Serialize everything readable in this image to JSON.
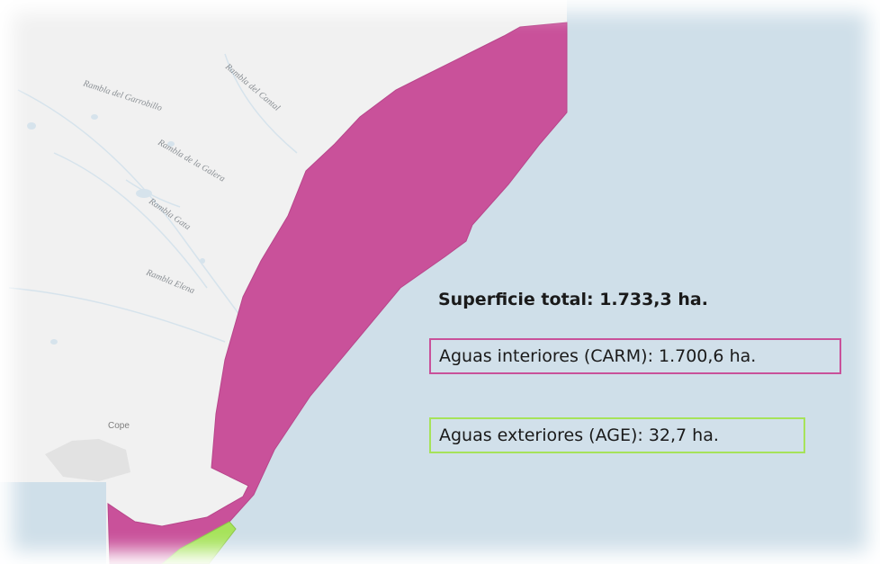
{
  "summary": {
    "total": "Superficie total: 1.733,3 ha.",
    "interior": "Aguas interiores (CARM): 1.700,6 ha.",
    "exterior": "Aguas exteriores (AGE): 32,7 ha."
  },
  "map_labels": [
    "Rambla del Garrobillo",
    "Rambla de la Galera",
    "Rambla Gata",
    "Rambla Elena",
    "Rambla del Cantal",
    "Cope"
  ]
}
